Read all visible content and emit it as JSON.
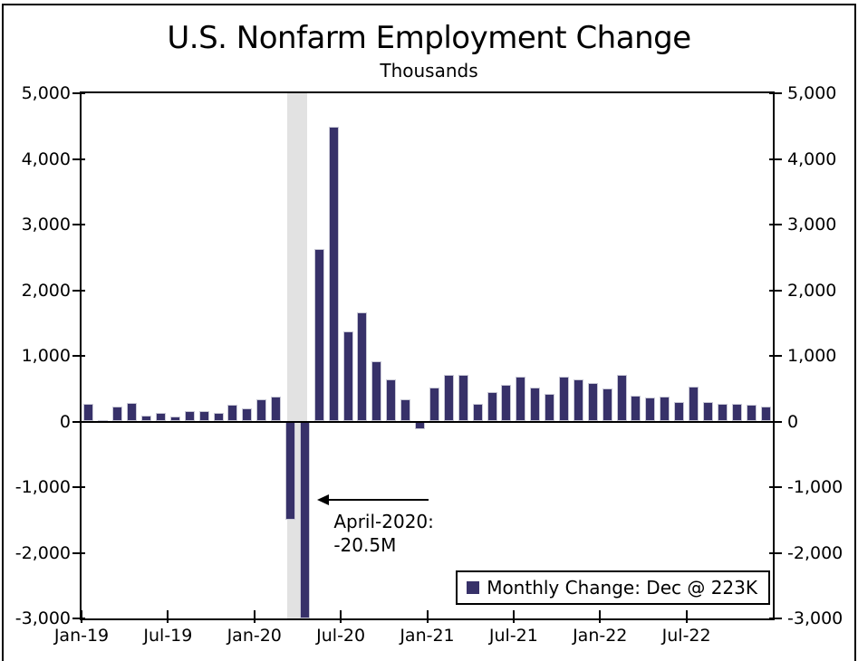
{
  "chart_data": {
    "type": "bar",
    "title": "U.S. Nonfarm Employment Change",
    "subtitle": "Thousands",
    "x": [
      "Jan-19",
      "Feb-19",
      "Mar-19",
      "Apr-19",
      "May-19",
      "Jun-19",
      "Jul-19",
      "Aug-19",
      "Sep-19",
      "Oct-19",
      "Nov-19",
      "Dec-19",
      "Jan-20",
      "Feb-20",
      "Mar-20",
      "Apr-20",
      "May-20",
      "Jun-20",
      "Jul-20",
      "Aug-20",
      "Sep-20",
      "Oct-20",
      "Nov-20",
      "Dec-20",
      "Jan-21",
      "Feb-21",
      "Mar-21",
      "Apr-21",
      "May-21",
      "Jun-21",
      "Jul-21",
      "Aug-21",
      "Sep-21",
      "Oct-21",
      "Nov-21",
      "Dec-21",
      "Jan-22",
      "Feb-22",
      "Mar-22",
      "Apr-22",
      "May-22",
      "Jun-22",
      "Jul-22",
      "Aug-22",
      "Sep-22",
      "Oct-22",
      "Nov-22",
      "Dec-22"
    ],
    "values": [
      269,
      25,
      221,
      281,
      87,
      130,
      76,
      161,
      163,
      128,
      256,
      194,
      340,
      385,
      -1500,
      -20500,
      2630,
      4490,
      1374,
      1664,
      919,
      647,
      333,
      -115,
      520,
      710,
      704,
      263,
      447,
      557,
      689,
      517,
      424,
      677,
      647,
      588,
      504,
      714,
      398,
      368,
      386,
      293,
      537,
      292,
      269,
      263,
      256,
      223
    ],
    "series_name": "Monthly Change: Dec @ 223K",
    "ylim": [
      -3000,
      5000
    ],
    "clip_min": -3000,
    "y_tick_values": [
      5000,
      4000,
      3000,
      2000,
      1000,
      0,
      -1000,
      -2000,
      -3000
    ],
    "y_tick_labels": [
      "5,000",
      "4,000",
      "3,000",
      "2,000",
      "1,000",
      "0",
      "-1,000",
      "-2,000",
      "-3,000"
    ],
    "x_tick_indices": [
      0,
      6,
      12,
      18,
      24,
      30,
      36,
      42
    ],
    "x_tick_labels": [
      "Jan-19",
      "Jul-19",
      "Jan-20",
      "Jul-20",
      "Jan-21",
      "Jul-21",
      "Jan-22",
      "Jul-22"
    ],
    "grid": "off",
    "legend_position": "bottom-right",
    "bar_color": "#373169",
    "bar_border_color": "#c9c9d6",
    "recession_band": {
      "color": "#e2e2e2",
      "start_month_index": 14.3,
      "end_month_index": 15.65
    },
    "annotation": {
      "line1": "April-2020:",
      "line2": "-20.5M",
      "arrow_points_to_month": "Apr-20"
    }
  }
}
